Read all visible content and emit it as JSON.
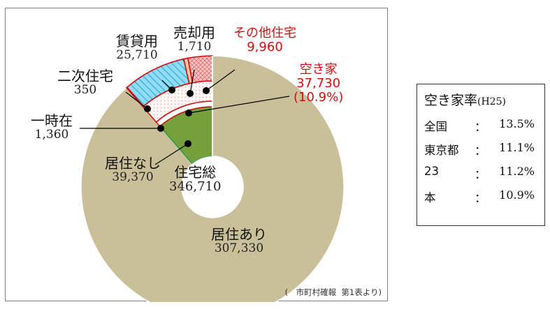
{
  "chart_data": {
    "type": "pie",
    "center_label": "住宅総",
    "center_value": "346,710",
    "total": 346710,
    "slices": [
      {
        "key": "kyojuari",
        "name": "居住あり",
        "value": 307330,
        "display": "307,330",
        "color": "#c9bf99",
        "pattern": "none"
      },
      {
        "key": "kyojunashi",
        "name": "居住なし",
        "value": 39370,
        "display": "39,370",
        "color": "#76a03b",
        "pattern": "none",
        "sub": [
          {
            "key": "ichiji",
            "name": "一時在",
            "value": 1360,
            "display": "1,360",
            "color": "#ffffff",
            "pattern": "none"
          },
          {
            "key": "akiya",
            "name": "空き家",
            "value": 37730,
            "display": "37,730",
            "extra": "(10.9%)",
            "color": "#ffffff",
            "pattern": "none",
            "sub": [
              {
                "key": "nijiteki",
                "name": "二次住宅",
                "value": 350,
                "display": "350",
                "color": "#ffffff",
                "pattern": "none"
              },
              {
                "key": "chintai",
                "name": "賃貸用",
                "value": 25710,
                "display": "25,710",
                "color": "#6fd0f2",
                "pattern": "diagonal"
              },
              {
                "key": "baikyaku",
                "name": "売却用",
                "value": 1710,
                "display": "1,710",
                "color": "#f4c9a4",
                "pattern": "none"
              },
              {
                "key": "sonota",
                "name": "その他住宅",
                "value": 9960,
                "display": "9,960",
                "color": "#f5b3b3",
                "pattern": "crosshatch"
              }
            ]
          }
        ]
      }
    ],
    "highlight_color": "#d01010",
    "outline_color": "#d01010",
    "source": "(　市町村確報  第1表より)"
  },
  "rate_box": {
    "title": "空き家率",
    "title_paren": "(H25)",
    "rows": [
      {
        "name": "全国",
        "colon": "：",
        "value": "13.5%"
      },
      {
        "name": "東京都",
        "colon": "：",
        "value": "11.1%"
      },
      {
        "name": "23",
        "colon": "：",
        "value": "11.2%"
      },
      {
        "name": "本",
        "colon": "：",
        "value": "10.9%"
      }
    ]
  }
}
